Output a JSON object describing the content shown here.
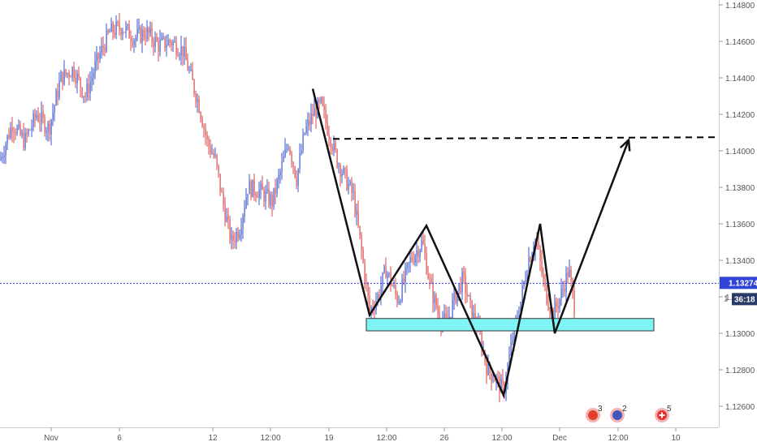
{
  "chart_data": {
    "type": "candlestick",
    "y_ticks": [
      "1.14800",
      "1.14600",
      "1.14400",
      "1.14200",
      "1.14000",
      "1.13800",
      "1.13600",
      "1.13400",
      "1.13200",
      "1.13000",
      "1.12800",
      "1.12600"
    ],
    "ylim": [
      1.255,
      1.1487
    ],
    "x_ticks": [
      "Nov",
      "6",
      "12",
      "12:00",
      "19",
      "12:00",
      "26",
      "12:00",
      "Dec",
      "12:00",
      "10"
    ],
    "current_price": {
      "value": "1.13274",
      "countdown": "36:18",
      "countdown_prefix": "1"
    },
    "series": [
      {
        "kind": "price_path",
        "points": [
          [
            0,
            1.1395
          ],
          [
            15,
            1.1415
          ],
          [
            30,
            1.1405
          ],
          [
            45,
            1.142
          ],
          [
            60,
            1.1412
          ],
          [
            75,
            1.144
          ],
          [
            90,
            1.1445
          ],
          [
            105,
            1.143
          ],
          [
            120,
            1.145
          ],
          [
            135,
            1.1465
          ],
          [
            150,
            1.1468
          ],
          [
            165,
            1.1462
          ],
          [
            180,
            1.1465
          ],
          [
            195,
            1.1458
          ],
          [
            210,
            1.146
          ],
          [
            225,
            1.1455
          ],
          [
            235,
            1.144
          ],
          [
            245,
            1.1425
          ],
          [
            255,
            1.1405
          ],
          [
            265,
            1.1395
          ],
          [
            275,
            1.137
          ],
          [
            285,
            1.135
          ],
          [
            295,
            1.1358
          ],
          [
            305,
            1.138
          ],
          [
            320,
            1.1378
          ],
          [
            335,
            1.1372
          ],
          [
            345,
            1.1388
          ],
          [
            355,
            1.1405
          ],
          [
            365,
            1.1385
          ],
          [
            375,
            1.141
          ],
          [
            385,
            1.142
          ],
          [
            395,
            1.1425
          ],
          [
            405,
            1.141
          ],
          [
            415,
            1.1395
          ],
          [
            425,
            1.1385
          ],
          [
            435,
            1.1375
          ],
          [
            445,
            1.1345
          ],
          [
            455,
            1.1312
          ],
          [
            465,
            1.132
          ],
          [
            475,
            1.1335
          ],
          [
            490,
            1.1318
          ],
          [
            505,
            1.134
          ],
          [
            520,
            1.135
          ],
          [
            530,
            1.1325
          ],
          [
            540,
            1.131
          ],
          [
            550,
            1.1305
          ],
          [
            560,
            1.132
          ],
          [
            570,
            1.133
          ],
          [
            580,
            1.1312
          ],
          [
            590,
            1.13
          ],
          [
            600,
            1.128
          ],
          [
            610,
            1.1275
          ],
          [
            620,
            1.1268
          ],
          [
            630,
            1.1295
          ],
          [
            640,
            1.1315
          ],
          [
            650,
            1.134
          ],
          [
            660,
            1.1352
          ],
          [
            670,
            1.1325
          ],
          [
            680,
            1.131
          ],
          [
            690,
            1.132
          ],
          [
            700,
            1.1335
          ],
          [
            707,
            1.1315
          ]
        ]
      }
    ],
    "pattern_lines": [
      [
        [
          385,
          1.143
        ],
        [
          455,
          1.1306
        ],
        [
          525,
          1.1355
        ],
        [
          620,
          1.1262
        ],
        [
          665,
          1.1356
        ],
        [
          683,
          1.1296
        ],
        [
          774,
          1.1402
        ]
      ]
    ],
    "resistance_level": 1.1403,
    "support_zone": [
      1.13,
      1.1305
    ],
    "event_badges": [
      {
        "icon": "euro-flag-icon",
        "count": "3"
      },
      {
        "icon": "eu-flag-icon",
        "count": "2"
      },
      {
        "icon": "swiss-flag-icon",
        "count": "5"
      }
    ],
    "colors": {
      "up": "#3d55c8",
      "down": "#d64a4a",
      "support_fill": "#7ff4f4",
      "price_line": "#2a3ee6",
      "price_tag": "#3045d6",
      "countdown_tag": "#2a3a66"
    }
  }
}
